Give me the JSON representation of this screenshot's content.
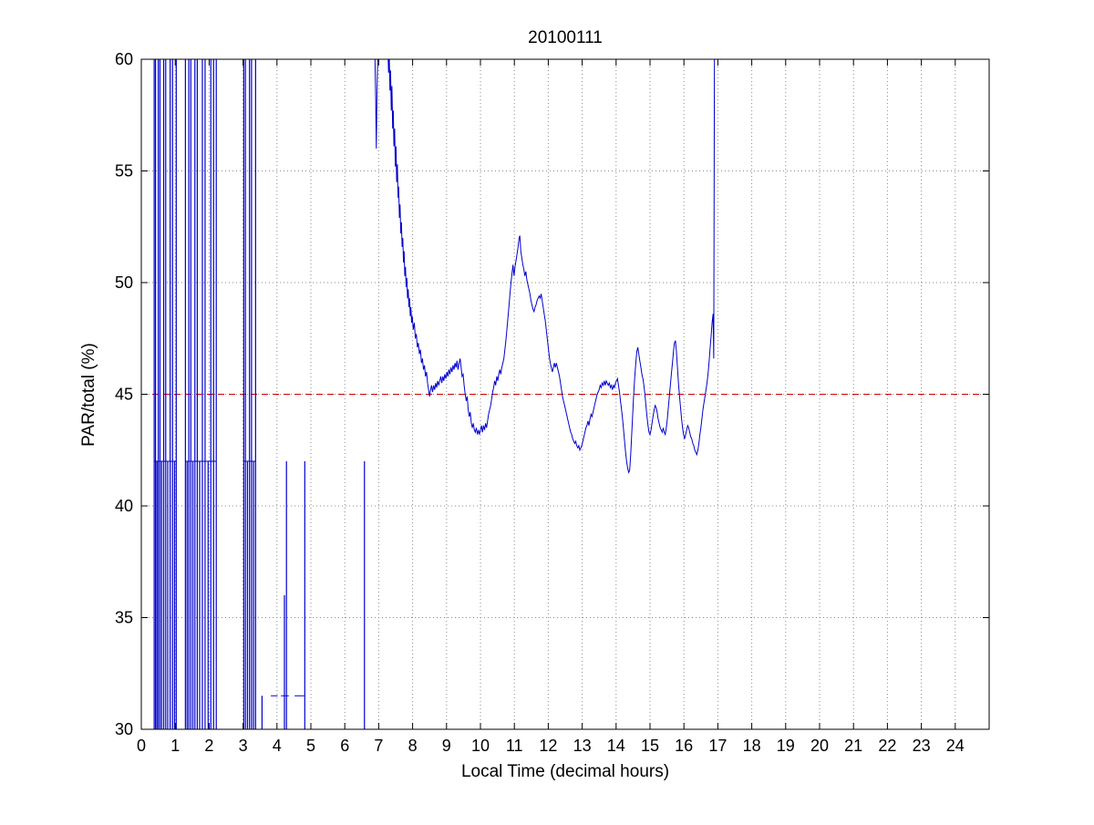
{
  "figure": {
    "background": "#ffffff"
  },
  "chart_data": {
    "type": "line",
    "title": "20100111",
    "xlabel": "Local Time (decimal hours)",
    "ylabel": "PAR/total (%)",
    "xlim": [
      0,
      25
    ],
    "ylim": [
      30,
      60
    ],
    "xticks": [
      0,
      1,
      2,
      3,
      4,
      5,
      6,
      7,
      8,
      9,
      10,
      11,
      12,
      13,
      14,
      15,
      16,
      17,
      18,
      19,
      20,
      21,
      22,
      23,
      24
    ],
    "yticks": [
      30,
      35,
      40,
      45,
      50,
      55,
      60
    ],
    "grid": true,
    "grid_color": "#8a8a8a",
    "axis_color": "#000000",
    "series_color": "#0000cc",
    "reference_line": {
      "y": 45,
      "color": "#cc0000",
      "style": "dashed"
    },
    "baseline_segments": [
      [
        0.38,
        1.03,
        42
      ],
      [
        1.3,
        2.21,
        42
      ],
      [
        3.02,
        3.37,
        42
      ],
      [
        3.82,
        4.02,
        31.5
      ],
      [
        4.12,
        4.35,
        31.5
      ],
      [
        4.52,
        4.8,
        31.5
      ]
    ],
    "spike_segments": [
      [
        0.38,
        29.4,
        60.6
      ],
      [
        0.42,
        29.4,
        60.6
      ],
      [
        0.46,
        29.4,
        42
      ],
      [
        0.5,
        29.4,
        60.6
      ],
      [
        0.55,
        29.4,
        60.6
      ],
      [
        0.6,
        29.4,
        42
      ],
      [
        0.66,
        29.4,
        60.6
      ],
      [
        0.72,
        29.4,
        60.6
      ],
      [
        0.78,
        29.4,
        42
      ],
      [
        0.85,
        29.4,
        60.6
      ],
      [
        0.92,
        29.4,
        60.6
      ],
      [
        0.98,
        29.4,
        42
      ],
      [
        1.03,
        29.4,
        60.6
      ],
      [
        1.3,
        29.4,
        60.6
      ],
      [
        1.35,
        29.4,
        42
      ],
      [
        1.4,
        29.4,
        60.6
      ],
      [
        1.46,
        29.4,
        60.6
      ],
      [
        1.52,
        29.4,
        42
      ],
      [
        1.58,
        29.4,
        60.6
      ],
      [
        1.65,
        29.4,
        60.6
      ],
      [
        1.72,
        29.4,
        42
      ],
      [
        1.8,
        29.4,
        60.6
      ],
      [
        1.88,
        29.4,
        60.6
      ],
      [
        1.97,
        29.4,
        42
      ],
      [
        2.05,
        29.4,
        60.6
      ],
      [
        2.13,
        29.4,
        60.6
      ],
      [
        2.21,
        29.4,
        60.6
      ],
      [
        3.02,
        29.4,
        60.6
      ],
      [
        3.07,
        29.4,
        60.6
      ],
      [
        3.13,
        29.4,
        42
      ],
      [
        3.19,
        29.4,
        60.6
      ],
      [
        3.25,
        29.4,
        60.6
      ],
      [
        3.31,
        29.4,
        42
      ],
      [
        3.37,
        29.4,
        60.6
      ],
      [
        3.56,
        29.4,
        31.5
      ],
      [
        4.22,
        29.4,
        36
      ],
      [
        4.28,
        29.4,
        42
      ],
      [
        4.82,
        29.4,
        42
      ],
      [
        6.58,
        29.4,
        42
      ]
    ],
    "main_trace": [
      [
        6.88,
        61
      ],
      [
        6.91,
        58.2
      ],
      [
        6.93,
        56.0
      ],
      [
        6.95,
        58.5
      ],
      [
        6.98,
        61
      ],
      [
        7.05,
        61
      ],
      [
        7.12,
        61
      ],
      [
        7.2,
        61
      ],
      [
        7.26,
        61
      ],
      [
        7.29,
        59.4
      ],
      [
        7.31,
        60.3
      ],
      [
        7.33,
        58.6
      ],
      [
        7.35,
        59.5
      ],
      [
        7.37,
        57.7
      ],
      [
        7.39,
        58.8
      ],
      [
        7.41,
        56.9
      ],
      [
        7.43,
        57.7
      ],
      [
        7.45,
        56.1
      ],
      [
        7.47,
        56.9
      ],
      [
        7.49,
        55.2
      ],
      [
        7.51,
        56.1
      ],
      [
        7.53,
        54.5
      ],
      [
        7.55,
        55.3
      ],
      [
        7.57,
        53.8
      ],
      [
        7.59,
        54.3
      ],
      [
        7.61,
        52.9
      ],
      [
        7.63,
        53.5
      ],
      [
        7.65,
        52.2
      ],
      [
        7.67,
        52.7
      ],
      [
        7.69,
        51.6
      ],
      [
        7.71,
        52.0
      ],
      [
        7.73,
        50.9
      ],
      [
        7.75,
        51.4
      ],
      [
        7.77,
        50.3
      ],
      [
        7.79,
        50.7
      ],
      [
        7.81,
        49.8
      ],
      [
        7.83,
        50.2
      ],
      [
        7.85,
        49.3
      ],
      [
        7.87,
        49.7
      ],
      [
        7.89,
        48.9
      ],
      [
        7.91,
        49.3
      ],
      [
        7.93,
        48.5
      ],
      [
        7.95,
        48.9
      ],
      [
        7.97,
        48.2
      ],
      [
        7.99,
        48.5
      ],
      [
        8.02,
        47.9
      ],
      [
        8.05,
        48.2
      ],
      [
        8.08,
        47.5
      ],
      [
        8.11,
        47.7
      ],
      [
        8.14,
        47.1
      ],
      [
        8.17,
        47.3
      ],
      [
        8.2,
        46.8
      ],
      [
        8.23,
        47.0
      ],
      [
        8.26,
        46.4
      ],
      [
        8.29,
        46.6
      ],
      [
        8.32,
        46.1
      ],
      [
        8.35,
        46.3
      ],
      [
        8.38,
        45.8
      ],
      [
        8.41,
        46.0
      ],
      [
        8.44,
        45.5
      ],
      [
        8.47,
        45.2
      ],
      [
        8.5,
        44.9
      ],
      [
        8.53,
        45.2
      ],
      [
        8.56,
        45.4
      ],
      [
        8.59,
        45.1
      ],
      [
        8.62,
        45.4
      ],
      [
        8.65,
        45.2
      ],
      [
        8.68,
        45.5
      ],
      [
        8.71,
        45.3
      ],
      [
        8.74,
        45.6
      ],
      [
        8.77,
        45.4
      ],
      [
        8.8,
        45.6
      ],
      [
        8.83,
        45.8
      ],
      [
        8.86,
        45.5
      ],
      [
        8.89,
        45.8
      ],
      [
        8.92,
        45.6
      ],
      [
        8.95,
        45.9
      ],
      [
        8.98,
        45.7
      ],
      [
        9.01,
        46.0
      ],
      [
        9.04,
        45.8
      ],
      [
        9.07,
        46.1
      ],
      [
        9.1,
        45.9
      ],
      [
        9.13,
        46.2
      ],
      [
        9.16,
        46.0
      ],
      [
        9.19,
        46.3
      ],
      [
        9.22,
        46.1
      ],
      [
        9.25,
        46.4
      ],
      [
        9.28,
        46.2
      ],
      [
        9.31,
        46.5
      ],
      [
        9.34,
        46.1
      ],
      [
        9.37,
        46.4
      ],
      [
        9.4,
        46.6
      ],
      [
        9.43,
        46.2
      ],
      [
        9.46,
        45.8
      ],
      [
        9.49,
        45.9
      ],
      [
        9.52,
        45.4
      ],
      [
        9.55,
        45.0
      ],
      [
        9.58,
        44.7
      ],
      [
        9.61,
        44.9
      ],
      [
        9.64,
        44.3
      ],
      [
        9.67,
        44.0
      ],
      [
        9.7,
        44.2
      ],
      [
        9.73,
        43.7
      ],
      [
        9.76,
        43.5
      ],
      [
        9.79,
        43.7
      ],
      [
        9.82,
        43.4
      ],
      [
        9.85,
        43.3
      ],
      [
        9.88,
        43.5
      ],
      [
        9.91,
        43.2
      ],
      [
        9.94,
        43.4
      ],
      [
        9.97,
        43.2
      ],
      [
        10.0,
        43.4
      ],
      [
        10.03,
        43.6
      ],
      [
        10.06,
        43.3
      ],
      [
        10.09,
        43.6
      ],
      [
        10.12,
        43.4
      ],
      [
        10.15,
        43.7
      ],
      [
        10.18,
        43.5
      ],
      [
        10.21,
        43.8
      ],
      [
        10.24,
        44.1
      ],
      [
        10.27,
        44.3
      ],
      [
        10.3,
        44.5
      ],
      [
        10.33,
        44.8
      ],
      [
        10.36,
        45.1
      ],
      [
        10.39,
        45.3
      ],
      [
        10.42,
        45.6
      ],
      [
        10.45,
        45.4
      ],
      [
        10.48,
        45.8
      ],
      [
        10.51,
        45.6
      ],
      [
        10.54,
        45.9
      ],
      [
        10.57,
        46.1
      ],
      [
        10.6,
        45.9
      ],
      [
        10.63,
        46.2
      ],
      [
        10.66,
        46.4
      ],
      [
        10.69,
        46.6
      ],
      [
        10.72,
        47.0
      ],
      [
        10.75,
        47.4
      ],
      [
        10.78,
        47.9
      ],
      [
        10.81,
        48.4
      ],
      [
        10.84,
        48.9
      ],
      [
        10.87,
        49.5
      ],
      [
        10.9,
        50.0
      ],
      [
        10.93,
        50.4
      ],
      [
        10.96,
        50.8
      ],
      [
        10.99,
        50.3
      ],
      [
        11.02,
        50.7
      ],
      [
        11.05,
        51.0
      ],
      [
        11.08,
        51.3
      ],
      [
        11.11,
        51.6
      ],
      [
        11.14,
        52.0
      ],
      [
        11.16,
        52.1
      ],
      [
        11.19,
        51.4
      ],
      [
        11.22,
        51.1
      ],
      [
        11.25,
        50.8
      ],
      [
        11.28,
        50.6
      ],
      [
        11.31,
        50.3
      ],
      [
        11.34,
        50.5
      ],
      [
        11.37,
        50.1
      ],
      [
        11.4,
        49.9
      ],
      [
        11.43,
        49.7
      ],
      [
        11.46,
        49.5
      ],
      [
        11.49,
        49.2
      ],
      [
        11.52,
        49.0
      ],
      [
        11.55,
        48.8
      ],
      [
        11.58,
        48.7
      ],
      [
        11.61,
        48.9
      ],
      [
        11.64,
        49.0
      ],
      [
        11.67,
        49.2
      ],
      [
        11.7,
        49.3
      ],
      [
        11.73,
        49.4
      ],
      [
        11.76,
        49.3
      ],
      [
        11.79,
        49.5
      ],
      [
        11.82,
        49.2
      ],
      [
        11.85,
        48.9
      ],
      [
        11.88,
        48.6
      ],
      [
        11.91,
        48.3
      ],
      [
        11.94,
        47.9
      ],
      [
        11.97,
        47.5
      ],
      [
        12.0,
        47.1
      ],
      [
        12.03,
        46.7
      ],
      [
        12.06,
        46.4
      ],
      [
        12.09,
        46.2
      ],
      [
        12.12,
        46.0
      ],
      [
        12.15,
        46.2
      ],
      [
        12.18,
        46.4
      ],
      [
        12.21,
        46.2
      ],
      [
        12.24,
        46.4
      ],
      [
        12.27,
        46.2
      ],
      [
        12.3,
        46.0
      ],
      [
        12.33,
        45.8
      ],
      [
        12.36,
        45.5
      ],
      [
        12.39,
        45.2
      ],
      [
        12.42,
        44.9
      ],
      [
        12.45,
        44.7
      ],
      [
        12.48,
        44.5
      ],
      [
        12.51,
        44.3
      ],
      [
        12.54,
        44.1
      ],
      [
        12.57,
        43.9
      ],
      [
        12.6,
        43.7
      ],
      [
        12.63,
        43.5
      ],
      [
        12.66,
        43.3
      ],
      [
        12.69,
        43.2
      ],
      [
        12.72,
        43.0
      ],
      [
        12.75,
        42.9
      ],
      [
        12.78,
        42.8
      ],
      [
        12.81,
        42.9
      ],
      [
        12.84,
        42.7
      ],
      [
        12.87,
        42.6
      ],
      [
        12.9,
        42.7
      ],
      [
        12.93,
        42.5
      ],
      [
        12.96,
        42.6
      ],
      [
        12.99,
        42.7
      ],
      [
        13.02,
        42.9
      ],
      [
        13.05,
        43.1
      ],
      [
        13.08,
        43.3
      ],
      [
        13.11,
        43.5
      ],
      [
        13.14,
        43.6
      ],
      [
        13.17,
        43.8
      ],
      [
        13.2,
        43.6
      ],
      [
        13.23,
        43.9
      ],
      [
        13.26,
        44.1
      ],
      [
        13.29,
        44.0
      ],
      [
        13.32,
        44.2
      ],
      [
        13.35,
        44.4
      ],
      [
        13.38,
        44.6
      ],
      [
        13.41,
        44.8
      ],
      [
        13.44,
        45.0
      ],
      [
        13.47,
        45.1
      ],
      [
        13.5,
        45.2
      ],
      [
        13.53,
        45.4
      ],
      [
        13.56,
        45.3
      ],
      [
        13.59,
        45.5
      ],
      [
        13.62,
        45.4
      ],
      [
        13.65,
        45.6
      ],
      [
        13.68,
        45.4
      ],
      [
        13.71,
        45.6
      ],
      [
        13.74,
        45.5
      ],
      [
        13.77,
        45.4
      ],
      [
        13.8,
        45.5
      ],
      [
        13.83,
        45.3
      ],
      [
        13.86,
        45.4
      ],
      [
        13.89,
        45.2
      ],
      [
        13.92,
        45.4
      ],
      [
        13.95,
        45.3
      ],
      [
        13.98,
        45.5
      ],
      [
        14.01,
        45.6
      ],
      [
        14.04,
        45.7
      ],
      [
        14.07,
        45.4
      ],
      [
        14.1,
        45.1
      ],
      [
        14.13,
        44.7
      ],
      [
        14.16,
        44.3
      ],
      [
        14.19,
        43.9
      ],
      [
        14.22,
        43.4
      ],
      [
        14.25,
        42.9
      ],
      [
        14.28,
        42.4
      ],
      [
        14.31,
        42.0
      ],
      [
        14.34,
        41.7
      ],
      [
        14.37,
        41.5
      ],
      [
        14.4,
        41.6
      ],
      [
        14.43,
        42.3
      ],
      [
        14.46,
        43.2
      ],
      [
        14.49,
        44.1
      ],
      [
        14.52,
        45.0
      ],
      [
        14.55,
        45.8
      ],
      [
        14.58,
        46.4
      ],
      [
        14.61,
        46.9
      ],
      [
        14.64,
        47.1
      ],
      [
        14.67,
        46.8
      ],
      [
        14.7,
        46.5
      ],
      [
        14.73,
        46.2
      ],
      [
        14.76,
        45.9
      ],
      [
        14.79,
        45.7
      ],
      [
        14.82,
        45.4
      ],
      [
        14.85,
        45.0
      ],
      [
        14.88,
        44.5
      ],
      [
        14.91,
        44.0
      ],
      [
        14.94,
        43.6
      ],
      [
        14.97,
        43.3
      ],
      [
        15.0,
        43.2
      ],
      [
        15.03,
        43.4
      ],
      [
        15.06,
        43.7
      ],
      [
        15.09,
        44.0
      ],
      [
        15.12,
        44.3
      ],
      [
        15.15,
        44.5
      ],
      [
        15.18,
        44.4
      ],
      [
        15.21,
        44.2
      ],
      [
        15.24,
        43.9
      ],
      [
        15.27,
        43.7
      ],
      [
        15.3,
        43.5
      ],
      [
        15.33,
        43.4
      ],
      [
        15.36,
        43.3
      ],
      [
        15.39,
        43.5
      ],
      [
        15.42,
        43.3
      ],
      [
        15.45,
        43.2
      ],
      [
        15.48,
        43.5
      ],
      [
        15.51,
        43.9
      ],
      [
        15.54,
        44.4
      ],
      [
        15.57,
        44.9
      ],
      [
        15.6,
        45.4
      ],
      [
        15.63,
        45.9
      ],
      [
        15.66,
        46.4
      ],
      [
        15.69,
        46.9
      ],
      [
        15.72,
        47.3
      ],
      [
        15.75,
        47.4
      ],
      [
        15.78,
        46.9
      ],
      [
        15.81,
        46.2
      ],
      [
        15.84,
        45.5
      ],
      [
        15.87,
        44.9
      ],
      [
        15.9,
        44.4
      ],
      [
        15.93,
        43.9
      ],
      [
        15.96,
        43.5
      ],
      [
        15.99,
        43.2
      ],
      [
        16.02,
        43.0
      ],
      [
        16.05,
        43.2
      ],
      [
        16.08,
        43.4
      ],
      [
        16.11,
        43.6
      ],
      [
        16.14,
        43.5
      ],
      [
        16.17,
        43.3
      ],
      [
        16.2,
        43.1
      ],
      [
        16.23,
        43.0
      ],
      [
        16.26,
        42.8
      ],
      [
        16.29,
        42.7
      ],
      [
        16.32,
        42.5
      ],
      [
        16.35,
        42.4
      ],
      [
        16.38,
        42.3
      ],
      [
        16.41,
        42.5
      ],
      [
        16.44,
        42.8
      ],
      [
        16.47,
        43.2
      ],
      [
        16.5,
        43.5
      ],
      [
        16.53,
        43.9
      ],
      [
        16.56,
        44.3
      ],
      [
        16.59,
        44.6
      ],
      [
        16.62,
        44.9
      ],
      [
        16.65,
        45.2
      ],
      [
        16.68,
        45.5
      ],
      [
        16.71,
        45.9
      ],
      [
        16.74,
        46.4
      ],
      [
        16.77,
        47.0
      ],
      [
        16.8,
        47.6
      ],
      [
        16.83,
        48.2
      ],
      [
        16.86,
        48.6
      ],
      [
        16.88,
        46.6
      ],
      [
        16.9,
        61
      ]
    ]
  }
}
